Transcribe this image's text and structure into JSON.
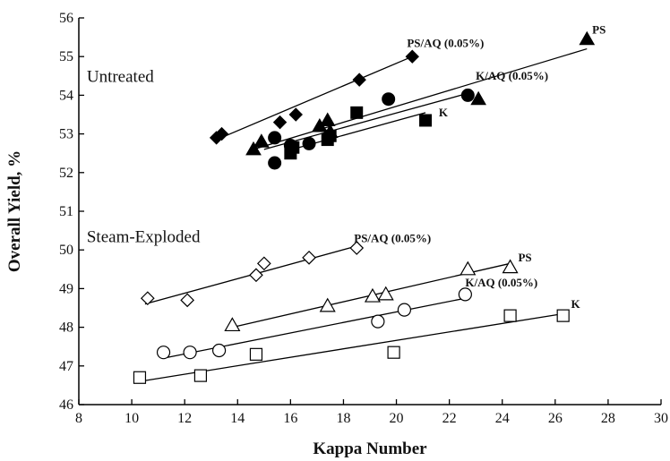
{
  "chart_data": {
    "type": "scatter",
    "xlabel": "Kappa Number",
    "ylabel": "Overall Yield, %",
    "xlim": [
      8,
      30
    ],
    "ylim": [
      46,
      56
    ],
    "xticks": [
      8,
      10,
      12,
      14,
      16,
      18,
      20,
      22,
      24,
      26,
      28,
      30
    ],
    "yticks": [
      46,
      47,
      48,
      49,
      50,
      51,
      52,
      53,
      54,
      55,
      56
    ],
    "grid": false,
    "legend": "none",
    "annotations": [
      {
        "text": "Untreated",
        "x": 8.3,
        "y": 54.35
      },
      {
        "text": "Steam-Exploded",
        "x": 8.3,
        "y": 50.2
      }
    ],
    "series": [
      {
        "name": "PS/AQ (0.05%)",
        "group": "Untreated",
        "marker": "diamond",
        "filled": true,
        "label_at": [
          20.4,
          55.25
        ],
        "points": [
          [
            13.2,
            52.9
          ],
          [
            13.4,
            53.0
          ],
          [
            15.6,
            53.3
          ],
          [
            16.2,
            53.5
          ],
          [
            18.6,
            54.4
          ],
          [
            20.6,
            55.0
          ]
        ],
        "fit": [
          [
            13.2,
            52.85
          ],
          [
            20.6,
            55.0
          ]
        ]
      },
      {
        "name": "PS",
        "group": "Untreated",
        "marker": "triangle",
        "filled": true,
        "label_at": [
          27.4,
          55.6
        ],
        "points": [
          [
            14.6,
            52.6
          ],
          [
            14.9,
            52.8
          ],
          [
            17.1,
            53.2
          ],
          [
            17.4,
            53.35
          ],
          [
            17.5,
            53.05
          ],
          [
            23.1,
            53.9
          ],
          [
            27.2,
            55.45
          ]
        ],
        "fit": [
          [
            14.6,
            52.6
          ],
          [
            27.2,
            55.2
          ]
        ]
      },
      {
        "name": "K/AQ (0.05%)",
        "group": "Untreated",
        "marker": "circle",
        "filled": true,
        "label_at": [
          23.0,
          54.4
        ],
        "points": [
          [
            15.4,
            52.25
          ],
          [
            15.4,
            52.9
          ],
          [
            16.0,
            52.7
          ],
          [
            16.7,
            52.75
          ],
          [
            19.7,
            53.9
          ],
          [
            22.7,
            54.0
          ]
        ],
        "fit": [
          [
            15.0,
            52.6
          ],
          [
            22.7,
            54.05
          ]
        ]
      },
      {
        "name": "K",
        "group": "Untreated",
        "marker": "square",
        "filled": true,
        "label_at": [
          21.6,
          53.45
        ],
        "points": [
          [
            16.0,
            52.5
          ],
          [
            16.1,
            52.65
          ],
          [
            17.4,
            52.85
          ],
          [
            17.5,
            52.95
          ],
          [
            18.5,
            53.55
          ],
          [
            21.1,
            53.35
          ]
        ],
        "fit": [
          [
            15.8,
            52.55
          ],
          [
            21.1,
            53.55
          ]
        ]
      },
      {
        "name": "PS/AQ (0.05%)",
        "group": "Steam-Exploded",
        "marker": "diamond",
        "filled": false,
        "label_at": [
          18.4,
          50.2
        ],
        "points": [
          [
            10.6,
            48.75
          ],
          [
            12.1,
            48.7
          ],
          [
            14.7,
            49.35
          ],
          [
            15.0,
            49.65
          ],
          [
            16.7,
            49.8
          ],
          [
            18.5,
            50.05
          ]
        ],
        "fit": [
          [
            10.5,
            48.6
          ],
          [
            18.5,
            50.1
          ]
        ]
      },
      {
        "name": "PS",
        "group": "Steam-Exploded",
        "marker": "triangle",
        "filled": false,
        "label_at": [
          24.6,
          49.7
        ],
        "points": [
          [
            13.8,
            48.05
          ],
          [
            17.4,
            48.55
          ],
          [
            19.1,
            48.8
          ],
          [
            19.6,
            48.85
          ],
          [
            22.7,
            49.5
          ],
          [
            24.3,
            49.55
          ]
        ],
        "fit": [
          [
            13.8,
            48.0
          ],
          [
            24.3,
            49.65
          ]
        ]
      },
      {
        "name": "K/AQ (0.05%)",
        "group": "Steam-Exploded",
        "marker": "circle",
        "filled": false,
        "label_at": [
          22.6,
          49.05
        ],
        "points": [
          [
            11.2,
            47.35
          ],
          [
            12.2,
            47.35
          ],
          [
            13.3,
            47.4
          ],
          [
            19.3,
            48.15
          ],
          [
            20.3,
            48.45
          ],
          [
            22.6,
            48.85
          ]
        ],
        "fit": [
          [
            11.2,
            47.2
          ],
          [
            22.6,
            48.75
          ]
        ]
      },
      {
        "name": "K",
        "group": "Steam-Exploded",
        "marker": "square",
        "filled": false,
        "label_at": [
          26.6,
          48.5
        ],
        "points": [
          [
            10.3,
            46.7
          ],
          [
            12.6,
            46.75
          ],
          [
            14.7,
            47.3
          ],
          [
            19.9,
            47.35
          ],
          [
            24.3,
            48.3
          ],
          [
            26.3,
            48.3
          ]
        ],
        "fit": [
          [
            10.3,
            46.6
          ],
          [
            26.3,
            48.35
          ]
        ]
      }
    ]
  }
}
